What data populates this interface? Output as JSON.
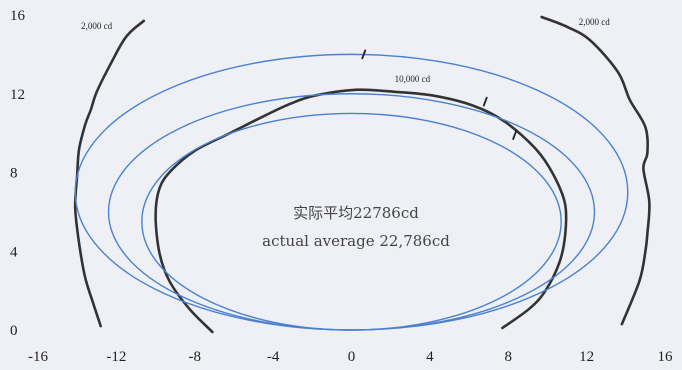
{
  "chart_data": {
    "type": "line",
    "xlim": [
      -16,
      16
    ],
    "ylim": [
      0,
      16
    ],
    "x_ticks": [
      "-16",
      "-12",
      "-8",
      "-4",
      "0",
      "4",
      "8",
      "12",
      "16"
    ],
    "y_ticks": [
      "0",
      "4",
      "8",
      "12",
      "16"
    ],
    "grid": false,
    "center_text": {
      "line1": "实际平均22786cd",
      "line2": "actual average 22,786cd"
    },
    "series": [
      {
        "name": "2,000 cd",
        "color": "#333333",
        "points": [
          [
            -10.6,
            15.7
          ],
          [
            -11.5,
            14.9
          ],
          [
            -12.3,
            13.5
          ],
          [
            -13,
            12.1
          ],
          [
            -13.3,
            11.2
          ],
          [
            -13.6,
            10.4
          ],
          [
            -13.9,
            9.2
          ],
          [
            -14,
            7.9
          ],
          [
            -14.1,
            6.2
          ],
          [
            -13.9,
            4.4
          ],
          [
            -13.6,
            2.7
          ],
          [
            -13.2,
            1.4
          ],
          [
            -12.8,
            0.2
          ]
        ]
      },
      {
        "name": "2,000 cd",
        "color": "#333333",
        "points": [
          [
            9.7,
            15.9
          ],
          [
            11,
            15.4
          ],
          [
            12.2,
            14.7
          ],
          [
            13.6,
            13.1
          ],
          [
            14.2,
            11.7
          ],
          [
            15,
            10.3
          ],
          [
            15.1,
            9
          ],
          [
            14.9,
            8.2
          ],
          [
            15.2,
            6.5
          ],
          [
            15.1,
            4.9
          ],
          [
            15,
            4
          ],
          [
            14.7,
            2.5
          ],
          [
            13.8,
            0.3
          ]
        ]
      },
      {
        "name": "10,000 cd",
        "color": "#333333",
        "points": [
          [
            -7.1,
            -0.1
          ],
          [
            -8.3,
            1.1
          ],
          [
            -9.3,
            2.5
          ],
          [
            -9.8,
            3.9
          ],
          [
            -10,
            5.8
          ],
          [
            -9.8,
            7.2
          ],
          [
            -9.2,
            8.1
          ],
          [
            -8,
            9.1
          ],
          [
            -6.2,
            10
          ],
          [
            -4.4,
            10.9
          ],
          [
            -3.1,
            11.5
          ],
          [
            -1.9,
            11.9
          ],
          [
            0.2,
            12.2
          ],
          [
            2.2,
            12.1
          ],
          [
            4.2,
            11.9
          ],
          [
            6.2,
            11.4
          ],
          [
            7.8,
            10.6
          ],
          [
            9.4,
            9.2
          ],
          [
            10.3,
            7.9
          ],
          [
            10.9,
            6.4
          ],
          [
            10.9,
            4.8
          ],
          [
            10.6,
            3.4
          ],
          [
            9.9,
            2
          ],
          [
            9.1,
            1.1
          ],
          [
            7.7,
            0.1
          ]
        ]
      },
      {
        "name": "blue-outer",
        "color": "#4a82d0",
        "ellipse": {
          "cx": 0,
          "cy": 7,
          "rx": 14.1,
          "ry": 7
        }
      },
      {
        "name": "blue-middle",
        "color": "#4a82d0",
        "ellipse": {
          "cx": 0,
          "cy": 6,
          "rx": 12.4,
          "ry": 6
        }
      },
      {
        "name": "blue-inner",
        "color": "#4a82d0",
        "ellipse": {
          "cx": 0,
          "cy": 5.5,
          "rx": 10.7,
          "ry": 5.5
        }
      }
    ],
    "annotations": [
      {
        "text": "2,000 cd",
        "x": -13.8,
        "y": 15.3
      },
      {
        "text": "2,000 cd",
        "x": 11.6,
        "y": 15.5
      },
      {
        "text": "10,000 cd",
        "x": 2.2,
        "y": 12.6
      }
    ]
  },
  "colors": {
    "background": "#eef0f5",
    "dark_curve": "#333333",
    "blue_curve": "#4a82d0"
  }
}
